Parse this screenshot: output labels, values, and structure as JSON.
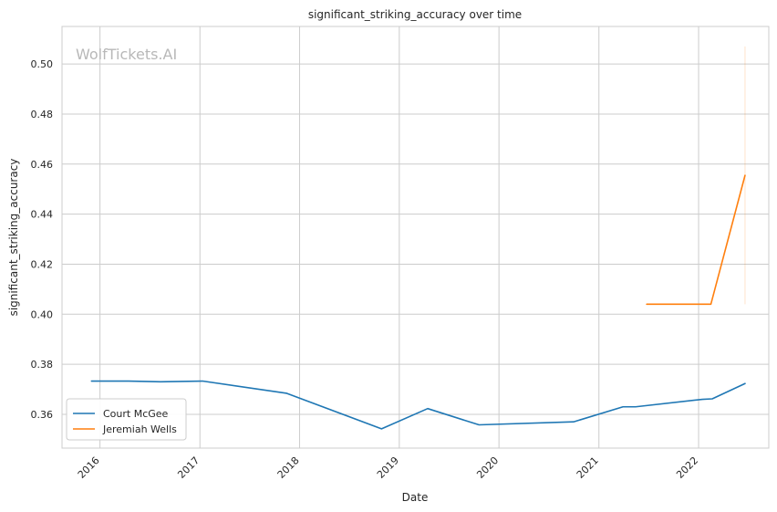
{
  "chart_data": {
    "type": "line",
    "title": "significant_striking_accuracy over time",
    "xlabel": "Date",
    "ylabel": "significant_striking_accuracy",
    "watermark": "WolfTickets.AI",
    "grid": true,
    "legend_position": "bottom-left",
    "xlim": [
      "2015-08-15",
      "2022-09-15"
    ],
    "ylim": [
      0.3465,
      0.515
    ],
    "x_ticks": [
      "2016",
      "2017",
      "2018",
      "2019",
      "2020",
      "2021",
      "2022"
    ],
    "y_ticks": [
      "0.36",
      "0.38",
      "0.40",
      "0.42",
      "0.44",
      "0.46",
      "0.48",
      "0.50"
    ],
    "series": [
      {
        "name": "Court McGee",
        "color": "#1f77b4",
        "points": [
          {
            "x": "2015-12-01",
            "y": 0.3733
          },
          {
            "x": "2016-04-15",
            "y": 0.3733
          },
          {
            "x": "2016-08-10",
            "y": 0.373
          },
          {
            "x": "2017-01-10",
            "y": 0.3733
          },
          {
            "x": "2017-11-15",
            "y": 0.3684
          },
          {
            "x": "2018-10-28",
            "y": 0.3542
          },
          {
            "x": "2019-04-15",
            "y": 0.3623
          },
          {
            "x": "2019-10-20",
            "y": 0.3558
          },
          {
            "x": "2020-09-30",
            "y": 0.357
          },
          {
            "x": "2021-03-30",
            "y": 0.363
          },
          {
            "x": "2021-05-15",
            "y": 0.363
          },
          {
            "x": "2022-01-15",
            "y": 0.366
          },
          {
            "x": "2022-02-20",
            "y": 0.3662
          },
          {
            "x": "2022-06-20",
            "y": 0.3723
          }
        ]
      },
      {
        "name": "Jeremiah Wells",
        "color": "#ff7f0e",
        "points": [
          {
            "x": "2021-06-25",
            "y": 0.404
          },
          {
            "x": "2022-02-15",
            "y": 0.404
          },
          {
            "x": "2022-06-20",
            "y": 0.4555
          }
        ],
        "interval": {
          "x": "2022-06-20",
          "low": 0.404,
          "high": 0.507
        }
      }
    ]
  }
}
